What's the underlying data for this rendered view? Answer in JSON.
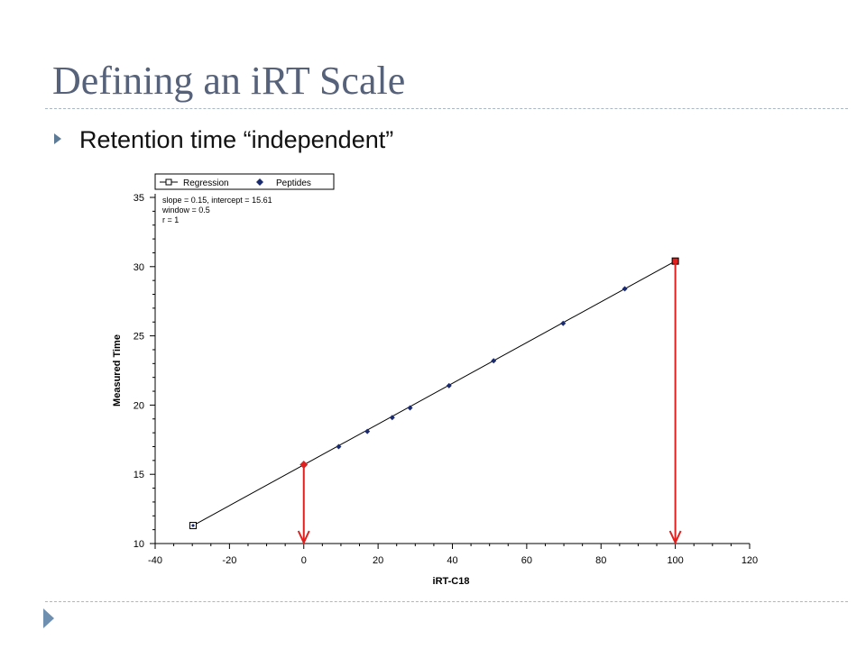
{
  "slide": {
    "title": "Defining an iRT Scale",
    "bullet": "Retention time “independent”"
  },
  "chart_data": {
    "type": "scatter",
    "xlabel": "iRT-C18",
    "ylabel": "Measured Time",
    "xlim": [
      -40,
      120
    ],
    "ylim": [
      10,
      35
    ],
    "xticks": [
      -40,
      -20,
      0,
      20,
      40,
      60,
      80,
      100,
      120
    ],
    "yticks": [
      10,
      15,
      20,
      25,
      30,
      35
    ],
    "legend": {
      "placement": "top-left",
      "entries": [
        "Regression",
        "Peptides"
      ]
    },
    "annotations": [
      "slope = 0.15, intercept = 15.61",
      "window = 0.5",
      "r = 1"
    ],
    "regression": {
      "x": [
        -29.8,
        100
      ],
      "y": [
        11.3,
        30.4
      ]
    },
    "series": [
      {
        "name": "Peptides",
        "x": [
          -29.8,
          9.4,
          17.1,
          23.8,
          28.6,
          39.1,
          51.1,
          69.8,
          86.4,
          100
        ],
        "y": [
          11.3,
          17.0,
          18.1,
          19.1,
          19.8,
          21.4,
          23.2,
          25.9,
          28.4,
          30.4
        ]
      }
    ],
    "highlighted_points": [
      {
        "x": 0,
        "y": 15.7
      },
      {
        "x": 100,
        "y": 30.4
      }
    ],
    "arrows_to_x": [
      0,
      100
    ],
    "colors": {
      "points": "#1a2a6e",
      "highlight": "#e0201e",
      "line": "#000000"
    }
  }
}
